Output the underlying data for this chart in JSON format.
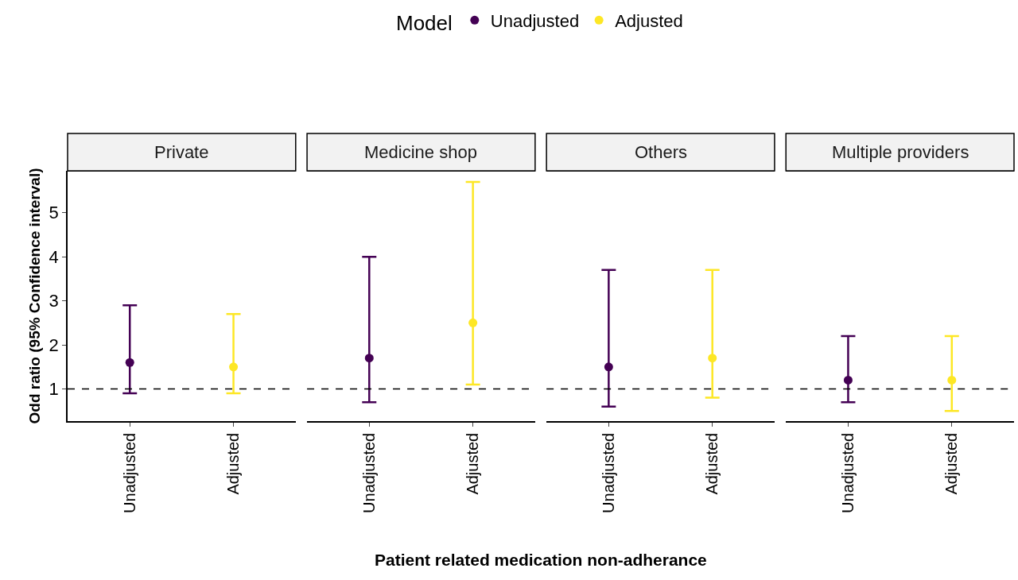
{
  "chart_data": [
    {
      "type": "scatter",
      "title": "Private",
      "xlabel": "Patient related medication non-adherance",
      "ylabel": "Odd ratio (95% Confidence interval)",
      "legend_title": "Model",
      "legend": "top",
      "marker": "circle",
      "categories": [
        "Unadjusted",
        "Adjusted"
      ],
      "ylim": [
        0.27,
        5.95
      ],
      "yticks": [
        1,
        2,
        3,
        4,
        5
      ],
      "series": [
        {
          "name": "Unadjusted",
          "color": "#440154",
          "values": [
            1.6,
            null
          ],
          "errors": [
            [
              0.9,
              2.9
            ],
            null
          ]
        },
        {
          "name": "Adjusted",
          "color": "#fde725",
          "values": [
            null,
            1.5
          ],
          "errors": [
            null,
            [
              0.9,
              2.7
            ]
          ]
        }
      ],
      "ref_lines": [
        {
          "axis": "y",
          "value": 1,
          "line_style": "dashed",
          "color": "#000000"
        }
      ]
    },
    {
      "type": "scatter",
      "title": "Medicine shop",
      "marker": "circle",
      "tick_labels": "x",
      "categories": [
        "Unadjusted",
        "Adjusted"
      ],
      "ylim": [
        0.27,
        5.95
      ],
      "yticks": [
        1,
        2,
        3,
        4,
        5
      ],
      "series": [
        {
          "name": "Unadjusted",
          "color": "#440154",
          "values": [
            1.7,
            null
          ],
          "errors": [
            [
              0.7,
              4.0
            ],
            null
          ]
        },
        {
          "name": "Adjusted",
          "color": "#fde725",
          "values": [
            null,
            2.5
          ],
          "errors": [
            null,
            [
              1.1,
              5.7
            ]
          ]
        }
      ],
      "ref_lines": [
        {
          "axis": "y",
          "value": 1,
          "line_style": "dashed",
          "color": "#000000"
        }
      ]
    },
    {
      "type": "scatter",
      "title": "Others",
      "marker": "circle",
      "tick_labels": "x",
      "categories": [
        "Unadjusted",
        "Adjusted"
      ],
      "ylim": [
        0.27,
        5.95
      ],
      "yticks": [
        1,
        2,
        3,
        4,
        5
      ],
      "series": [
        {
          "name": "Unadjusted",
          "color": "#440154",
          "values": [
            1.5,
            null
          ],
          "errors": [
            [
              0.6,
              3.7
            ],
            null
          ]
        },
        {
          "name": "Adjusted",
          "color": "#fde725",
          "values": [
            null,
            1.7
          ],
          "errors": [
            null,
            [
              0.8,
              3.7
            ]
          ]
        }
      ],
      "ref_lines": [
        {
          "axis": "y",
          "value": 1,
          "line_style": "dashed",
          "color": "#000000"
        }
      ]
    },
    {
      "type": "scatter",
      "title": "Multiple providers",
      "marker": "circle",
      "tick_labels": "x",
      "categories": [
        "Unadjusted",
        "Adjusted"
      ],
      "ylim": [
        0.27,
        5.95
      ],
      "yticks": [
        1,
        2,
        3,
        4,
        5
      ],
      "series": [
        {
          "name": "Unadjusted",
          "color": "#440154",
          "values": [
            1.2,
            null
          ],
          "errors": [
            [
              0.7,
              2.2
            ],
            null
          ]
        },
        {
          "name": "Adjusted",
          "color": "#fde725",
          "values": [
            null,
            1.2
          ],
          "errors": [
            null,
            [
              0.5,
              2.2
            ]
          ]
        }
      ],
      "ref_lines": [
        {
          "axis": "y",
          "value": 1,
          "line_style": "dashed",
          "color": "#000000"
        }
      ]
    }
  ]
}
